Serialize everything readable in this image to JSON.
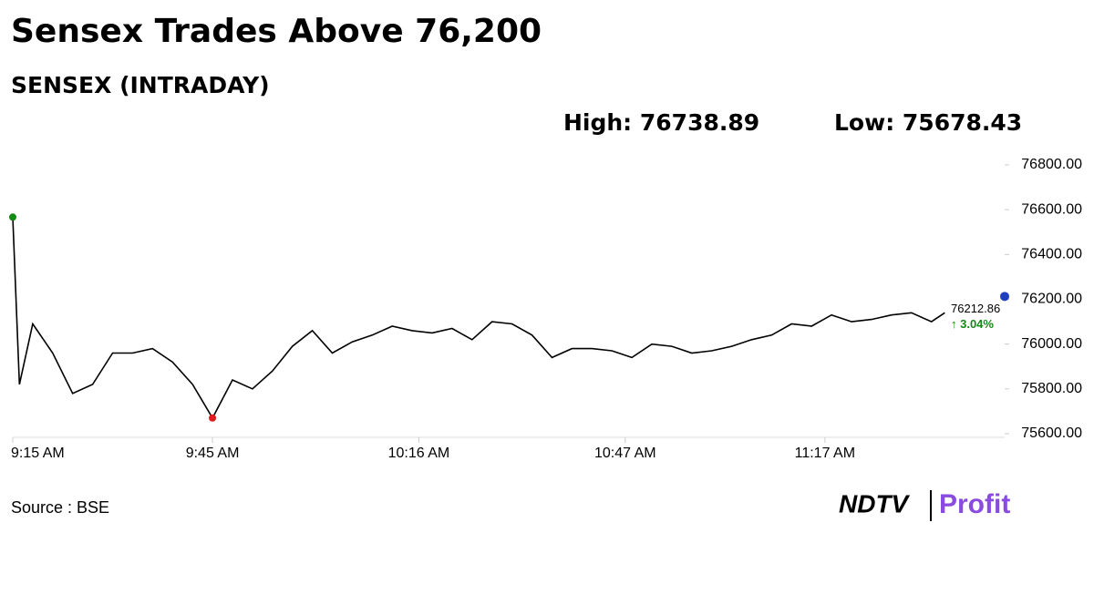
{
  "chart_data": {
    "type": "line",
    "title": "Sensex Trades Above 76,200",
    "subtitle": "SENSEX (INTRADAY)",
    "high_label": "High: 76738.89",
    "low_label": "Low: 75678.43",
    "source": "Source : BSE",
    "logo_left": "NDTV",
    "logo_right": "Profit",
    "x": [
      "9:15 AM",
      "9:16 AM",
      "9:18 AM",
      "9:21 AM",
      "9:24 AM",
      "9:27 AM",
      "9:30 AM",
      "9:33 AM",
      "9:36 AM",
      "9:39 AM",
      "9:42 AM",
      "9:45 AM",
      "9:48 AM",
      "9:51 AM",
      "9:54 AM",
      "9:57 AM",
      "10:00 AM",
      "10:03 AM",
      "10:06 AM",
      "10:09 AM",
      "10:12 AM",
      "10:15 AM",
      "10:18 AM",
      "10:21 AM",
      "10:24 AM",
      "10:27 AM",
      "10:30 AM",
      "10:33 AM",
      "10:36 AM",
      "10:39 AM",
      "10:42 AM",
      "10:45 AM",
      "10:48 AM",
      "10:51 AM",
      "10:54 AM",
      "10:57 AM",
      "11:00 AM",
      "11:03 AM",
      "11:06 AM",
      "11:09 AM",
      "11:12 AM",
      "11:15 AM",
      "11:18 AM",
      "11:21 AM",
      "11:24 AM",
      "11:27 AM",
      "11:30 AM",
      "11:33 AM",
      "11:35 AM"
    ],
    "series": [
      {
        "color": "#000000",
        "values": [
          76567,
          75820,
          76090,
          75960,
          75780,
          75820,
          75960,
          75960,
          75980,
          75920,
          75820,
          75670,
          75840,
          75800,
          75880,
          75990,
          76060,
          75960,
          76010,
          76040,
          76080,
          76060,
          76050,
          76070,
          76020,
          76100,
          76090,
          76040,
          75940,
          75980,
          75980,
          75970,
          75940,
          76000,
          75990,
          75960,
          75970,
          75990,
          76020,
          76040,
          76090,
          76080,
          76130,
          76100,
          76110,
          76130,
          76140,
          76100,
          76140
        ]
      }
    ],
    "start_color": "#138a13",
    "low_color": "#e01b1b",
    "last_value": 76212.86,
    "last_label": "76212.86",
    "last_color": "#1f3fbf",
    "change_label": "↑ 3.04%",
    "change_color": "#138a13",
    "xlim": [
      "9:15 AM",
      "11:44 AM"
    ],
    "xticks": [
      "9:15 AM",
      "9:45 AM",
      "10:16 AM",
      "10:47 AM",
      "11:17 AM"
    ],
    "ylim": [
      75600,
      76800
    ],
    "yticks": [
      {
        "value": 75600,
        "label": "75600.00"
      },
      {
        "value": 75800,
        "label": "75800.00"
      },
      {
        "value": 76000,
        "label": "76000.00"
      },
      {
        "value": 76200,
        "label": "76200.00"
      },
      {
        "value": 76400,
        "label": "76400.00"
      },
      {
        "value": 76600,
        "label": "76600.00"
      },
      {
        "value": 76800,
        "label": "76800.00"
      }
    ]
  }
}
